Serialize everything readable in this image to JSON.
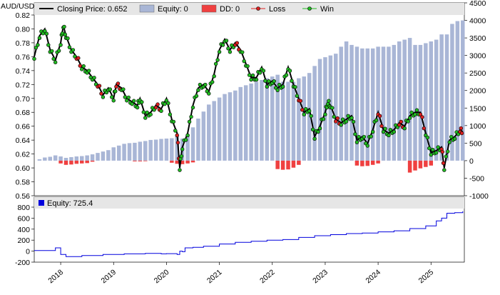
{
  "chart_data": [
    {
      "type": "bar+line",
      "ylabel_left": "AUD/USD",
      "left_axis": {
        "min": 0.56,
        "max": 0.82,
        "ticks": [
          "0.56",
          "0.58",
          "0.60",
          "0.62",
          "0.64",
          "0.66",
          "0.68",
          "0.70",
          "0.72",
          "0.74",
          "0.76",
          "0.78",
          "0.80",
          "0.82"
        ]
      },
      "right_axis": {
        "min": -1000,
        "max": 4500,
        "ticks": [
          "-1000",
          "-500",
          "0",
          "500",
          "1000",
          "1500",
          "2000",
          "2500",
          "3000",
          "3500",
          "4000",
          "4500"
        ]
      },
      "legend": [
        {
          "label": "Closing Price: 0.652",
          "color": "#000000",
          "kind": "line"
        },
        {
          "label": "Equity: 0",
          "color": "#a9b6d6",
          "kind": "box"
        },
        {
          "label": "DD: 0",
          "color": "#ef4040",
          "kind": "box"
        },
        {
          "label": "Loss",
          "color": "#dd2020",
          "kind": "marker"
        },
        {
          "label": "Win",
          "color": "#22bb22",
          "kind": "marker"
        }
      ],
      "colors": {
        "equity_bar": "#a9b6d6",
        "dd_bar": "#ef4040",
        "price": "#000000",
        "win": "#22bb22",
        "loss": "#dd2020",
        "legend_bg": "#e6e6e6"
      },
      "price_series": [
        [
          2017.5,
          0.76
        ],
        [
          2017.6,
          0.79
        ],
        [
          2017.7,
          0.8
        ],
        [
          2017.8,
          0.77
        ],
        [
          2017.9,
          0.755
        ],
        [
          2018.0,
          0.78
        ],
        [
          2018.05,
          0.805
        ],
        [
          2018.1,
          0.79
        ],
        [
          2018.2,
          0.77
        ],
        [
          2018.3,
          0.76
        ],
        [
          2018.4,
          0.745
        ],
        [
          2018.5,
          0.74
        ],
        [
          2018.6,
          0.73
        ],
        [
          2018.7,
          0.72
        ],
        [
          2018.8,
          0.705
        ],
        [
          2018.9,
          0.715
        ],
        [
          2019.0,
          0.7
        ],
        [
          2019.05,
          0.72
        ],
        [
          2019.15,
          0.715
        ],
        [
          2019.25,
          0.7
        ],
        [
          2019.35,
          0.695
        ],
        [
          2019.45,
          0.69
        ],
        [
          2019.5,
          0.7
        ],
        [
          2019.6,
          0.675
        ],
        [
          2019.7,
          0.68
        ],
        [
          2019.8,
          0.69
        ],
        [
          2019.9,
          0.685
        ],
        [
          2020.0,
          0.7
        ],
        [
          2020.1,
          0.67
        ],
        [
          2020.2,
          0.65
        ],
        [
          2020.25,
          0.6
        ],
        [
          2020.3,
          0.63
        ],
        [
          2020.4,
          0.65
        ],
        [
          2020.5,
          0.69
        ],
        [
          2020.6,
          0.715
        ],
        [
          2020.7,
          0.72
        ],
        [
          2020.8,
          0.71
        ],
        [
          2020.9,
          0.735
        ],
        [
          2021.0,
          0.77
        ],
        [
          2021.1,
          0.785
        ],
        [
          2021.2,
          0.77
        ],
        [
          2021.3,
          0.78
        ],
        [
          2021.4,
          0.77
        ],
        [
          2021.5,
          0.75
        ],
        [
          2021.6,
          0.73
        ],
        [
          2021.7,
          0.73
        ],
        [
          2021.8,
          0.745
        ],
        [
          2021.9,
          0.72
        ],
        [
          2022.0,
          0.725
        ],
        [
          2022.1,
          0.715
        ],
        [
          2022.2,
          0.72
        ],
        [
          2022.3,
          0.745
        ],
        [
          2022.4,
          0.72
        ],
        [
          2022.5,
          0.7
        ],
        [
          2022.6,
          0.68
        ],
        [
          2022.7,
          0.685
        ],
        [
          2022.8,
          0.645
        ],
        [
          2022.9,
          0.66
        ],
        [
          2023.0,
          0.68
        ],
        [
          2023.05,
          0.695
        ],
        [
          2023.1,
          0.69
        ],
        [
          2023.2,
          0.67
        ],
        [
          2023.3,
          0.665
        ],
        [
          2023.4,
          0.67
        ],
        [
          2023.5,
          0.675
        ],
        [
          2023.6,
          0.64
        ],
        [
          2023.7,
          0.645
        ],
        [
          2023.8,
          0.635
        ],
        [
          2023.9,
          0.655
        ],
        [
          2024.0,
          0.68
        ],
        [
          2024.1,
          0.655
        ],
        [
          2024.2,
          0.65
        ],
        [
          2024.3,
          0.655
        ],
        [
          2024.4,
          0.665
        ],
        [
          2024.5,
          0.66
        ],
        [
          2024.6,
          0.675
        ],
        [
          2024.7,
          0.68
        ],
        [
          2024.8,
          0.68
        ],
        [
          2024.9,
          0.65
        ],
        [
          2025.0,
          0.622
        ],
        [
          2025.1,
          0.625
        ],
        [
          2025.2,
          0.63
        ],
        [
          2025.25,
          0.6
        ],
        [
          2025.35,
          0.64
        ],
        [
          2025.45,
          0.645
        ],
        [
          2025.55,
          0.655
        ],
        [
          2025.6,
          0.652
        ]
      ],
      "equity_bars": [
        [
          2017.6,
          40
        ],
        [
          2017.7,
          90
        ],
        [
          2017.8,
          110
        ],
        [
          2017.9,
          150
        ],
        [
          2018.0,
          120
        ],
        [
          2018.1,
          80
        ],
        [
          2018.2,
          100
        ],
        [
          2018.3,
          120
        ],
        [
          2018.4,
          130
        ],
        [
          2018.5,
          150
        ],
        [
          2018.6,
          180
        ],
        [
          2018.7,
          220
        ],
        [
          2018.8,
          260
        ],
        [
          2018.9,
          300
        ],
        [
          2019.0,
          380
        ],
        [
          2019.1,
          430
        ],
        [
          2019.2,
          480
        ],
        [
          2019.3,
          500
        ],
        [
          2019.4,
          510
        ],
        [
          2019.5,
          540
        ],
        [
          2019.6,
          560
        ],
        [
          2019.7,
          590
        ],
        [
          2019.8,
          600
        ],
        [
          2019.9,
          620
        ],
        [
          2020.0,
          630
        ],
        [
          2020.1,
          640
        ],
        [
          2020.2,
          700
        ],
        [
          2020.3,
          630
        ],
        [
          2020.4,
          750
        ],
        [
          2020.5,
          950
        ],
        [
          2020.6,
          1200
        ],
        [
          2020.7,
          1400
        ],
        [
          2020.8,
          1600
        ],
        [
          2020.9,
          1700
        ],
        [
          2021.0,
          1800
        ],
        [
          2021.1,
          1900
        ],
        [
          2021.2,
          1950
        ],
        [
          2021.3,
          2000
        ],
        [
          2021.4,
          2100
        ],
        [
          2021.5,
          2150
        ],
        [
          2021.6,
          2200
        ],
        [
          2021.7,
          2250
        ],
        [
          2021.8,
          2300
        ],
        [
          2021.9,
          2350
        ],
        [
          2022.0,
          2400
        ],
        [
          2022.1,
          2450
        ],
        [
          2022.2,
          2250
        ],
        [
          2022.3,
          2250
        ],
        [
          2022.4,
          2250
        ],
        [
          2022.5,
          2350
        ],
        [
          2022.6,
          2400
        ],
        [
          2022.7,
          2500
        ],
        [
          2022.8,
          2700
        ],
        [
          2022.9,
          2900
        ],
        [
          2023.0,
          2950
        ],
        [
          2023.1,
          3000
        ],
        [
          2023.2,
          3050
        ],
        [
          2023.3,
          3250
        ],
        [
          2023.4,
          3400
        ],
        [
          2023.5,
          3300
        ],
        [
          2023.6,
          3250
        ],
        [
          2023.7,
          3200
        ],
        [
          2023.8,
          3200
        ],
        [
          2023.9,
          3200
        ],
        [
          2024.0,
          3250
        ],
        [
          2024.1,
          3250
        ],
        [
          2024.2,
          3250
        ],
        [
          2024.3,
          3300
        ],
        [
          2024.4,
          3400
        ],
        [
          2024.5,
          3450
        ],
        [
          2024.6,
          3500
        ],
        [
          2024.7,
          3300
        ],
        [
          2024.8,
          3300
        ],
        [
          2024.9,
          3350
        ],
        [
          2025.0,
          3400
        ],
        [
          2025.1,
          3450
        ],
        [
          2025.2,
          3600
        ],
        [
          2025.3,
          3600
        ],
        [
          2025.4,
          3900
        ],
        [
          2025.5,
          3980
        ],
        [
          2025.6,
          4000
        ]
      ],
      "dd_bars": [
        [
          2018.0,
          -80
        ],
        [
          2018.1,
          -120
        ],
        [
          2018.2,
          -110
        ],
        [
          2018.3,
          -90
        ],
        [
          2018.4,
          -80
        ],
        [
          2018.5,
          -70
        ],
        [
          2018.6,
          -30
        ],
        [
          2019.4,
          -20
        ],
        [
          2019.5,
          -20
        ],
        [
          2019.6,
          -15
        ],
        [
          2020.1,
          -60
        ],
        [
          2020.2,
          -90
        ],
        [
          2020.3,
          -100
        ],
        [
          2020.4,
          -80
        ],
        [
          2020.5,
          -50
        ],
        [
          2022.1,
          -240
        ],
        [
          2022.2,
          -260
        ],
        [
          2022.3,
          -250
        ],
        [
          2022.4,
          -200
        ],
        [
          2022.5,
          -120
        ],
        [
          2023.6,
          -140
        ],
        [
          2023.7,
          -160
        ],
        [
          2023.8,
          -150
        ],
        [
          2023.9,
          -120
        ],
        [
          2024.0,
          -80
        ],
        [
          2024.6,
          -340
        ],
        [
          2024.7,
          -280
        ],
        [
          2024.8,
          -220
        ],
        [
          2024.9,
          -180
        ],
        [
          2025.0,
          -140
        ]
      ]
    },
    {
      "type": "line",
      "legend": [
        {
          "label": "Equity: 725.4",
          "color": "#0000dd",
          "kind": "box"
        }
      ],
      "yaxis": {
        "min": -200,
        "max": 800,
        "ticks": [
          "-200",
          "0",
          "200",
          "400",
          "600",
          "800"
        ]
      },
      "x_ticks": [
        "2018",
        "2019",
        "2020",
        "2021",
        "2022",
        "2023",
        "2024",
        "2025"
      ],
      "series": [
        [
          2017.5,
          10
        ],
        [
          2017.9,
          60
        ],
        [
          2018.0,
          -60
        ],
        [
          2018.1,
          -100
        ],
        [
          2018.4,
          -80
        ],
        [
          2018.8,
          -60
        ],
        [
          2019.2,
          -50
        ],
        [
          2019.6,
          -40
        ],
        [
          2019.9,
          -50
        ],
        [
          2020.0,
          -45
        ],
        [
          2020.2,
          -60
        ],
        [
          2020.25,
          0
        ],
        [
          2020.3,
          -10
        ],
        [
          2020.35,
          60
        ],
        [
          2020.5,
          70
        ],
        [
          2020.7,
          90
        ],
        [
          2021.0,
          130
        ],
        [
          2021.3,
          160
        ],
        [
          2021.6,
          180
        ],
        [
          2021.9,
          200
        ],
        [
          2022.2,
          210
        ],
        [
          2022.5,
          250
        ],
        [
          2022.8,
          280
        ],
        [
          2023.1,
          300
        ],
        [
          2023.4,
          320
        ],
        [
          2023.7,
          330
        ],
        [
          2024.0,
          350
        ],
        [
          2024.3,
          370
        ],
        [
          2024.6,
          410
        ],
        [
          2024.9,
          460
        ],
        [
          2025.1,
          550
        ],
        [
          2025.2,
          600
        ],
        [
          2025.3,
          690
        ],
        [
          2025.45,
          700
        ],
        [
          2025.6,
          725.4
        ]
      ]
    }
  ]
}
